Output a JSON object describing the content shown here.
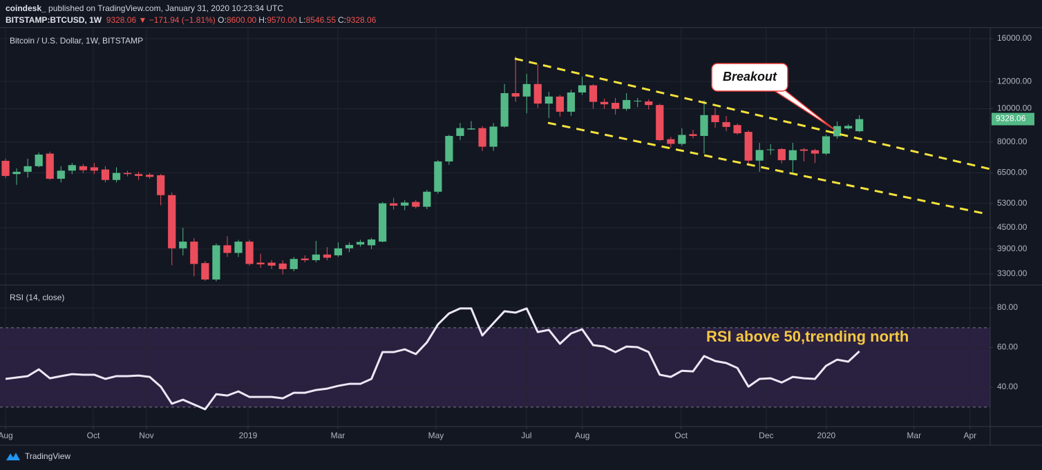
{
  "header": {
    "author": "coindesk_",
    "published": "published on TradingView.com, January 31, 2020 10:23:34 UTC",
    "symbol": "BITSTAMP:BTCUSD, 1W",
    "last": "9328.06",
    "change": "▼ −171.94 (−1.81%)",
    "ohlc": [
      {
        "label": "O:",
        "value": "8600.00"
      },
      {
        "label": "H:",
        "value": "9570.00"
      },
      {
        "label": "L:",
        "value": "8546.55"
      },
      {
        "label": "C:",
        "value": "9328.06"
      }
    ]
  },
  "footer": {
    "brand": "TradingView"
  },
  "chart_data": [
    {
      "type": "candlestick",
      "title": "Bitcoin / U.S. Dollar, 1W, BITSTAMP",
      "annotation": "Breakout",
      "up_color": "#53b987",
      "down_color": "#eb4d5c",
      "grid": true,
      "log": true,
      "xlim": [
        -0.5,
        88.8
      ],
      "ylim": [
        3064,
        17230
      ],
      "yticks": [
        {
          "value": 3300,
          "label": "3300.00"
        },
        {
          "value": 3900,
          "label": "3900.00"
        },
        {
          "value": 4500,
          "label": "4500.00"
        },
        {
          "value": 5300,
          "label": "5300.00"
        },
        {
          "value": 6500,
          "label": "6500.00"
        },
        {
          "value": 8000,
          "label": "8000.00"
        },
        {
          "value": 10000,
          "label": "10000.00"
        },
        {
          "value": 12000,
          "label": "12000.00"
        },
        {
          "value": 16000,
          "label": "16000.00"
        }
      ],
      "open": [
        7050,
        6450,
        6550,
        6800,
        7400,
        6250,
        6600,
        6800,
        6750,
        6650,
        6200,
        6500,
        6450,
        6420,
        6400,
        5600,
        3920,
        4100,
        3550,
        3180,
        4000,
        3800,
        4100,
        3560,
        3560,
        3540,
        3410,
        3660,
        3620,
        3760,
        3740,
        3920,
        4020,
        4000,
        4100,
        5300,
        5220,
        5350,
        5180,
        5730,
        7020,
        8330,
        8700,
        8780,
        7750,
        8870,
        11100,
        10850,
        11800,
        10350,
        10850,
        9800,
        11150,
        11700,
        10470,
        10400,
        9990,
        10500,
        10500,
        10250,
        8150,
        7900,
        8430,
        8330,
        9580,
        9140,
        8960,
        8560,
        7060,
        7580,
        7630,
        7080,
        7610,
        7570,
        7400,
        8310,
        8760,
        8600
      ],
      "high": [
        7150,
        6700,
        7150,
        7450,
        7500,
        6800,
        6950,
        6900,
        6950,
        6800,
        6750,
        6600,
        6550,
        6500,
        6450,
        5700,
        4500,
        4200,
        3600,
        4050,
        4250,
        4150,
        4150,
        3780,
        3620,
        3620,
        3700,
        3740,
        4120,
        3950,
        4080,
        4080,
        4150,
        4200,
        5350,
        5500,
        5420,
        5420,
        5800,
        7090,
        8400,
        9090,
        9200,
        8900,
        9090,
        11800,
        14200,
        12630,
        13500,
        11200,
        10970,
        11350,
        12400,
        11800,
        10700,
        10750,
        11100,
        10750,
        10650,
        10350,
        8280,
        8770,
        8680,
        10580,
        10040,
        9530,
        9050,
        8640,
        7950,
        7890,
        7680,
        7950,
        7680,
        7640,
        8400,
        9180,
        9010,
        9570
      ],
      "low": [
        6280,
        6000,
        6300,
        6750,
        6200,
        6100,
        6450,
        6500,
        6450,
        6100,
        6100,
        6350,
        6200,
        6250,
        5230,
        3500,
        3740,
        3250,
        3150,
        3140,
        3700,
        3700,
        3490,
        3440,
        3410,
        3290,
        3360,
        3570,
        3570,
        3620,
        3700,
        3820,
        3960,
        3900,
        4080,
        5080,
        5060,
        5120,
        5100,
        5650,
        6860,
        8100,
        8680,
        7540,
        7540,
        8820,
        10470,
        9700,
        10050,
        9400,
        9480,
        9530,
        10970,
        9990,
        9990,
        9620,
        9860,
        10100,
        9950,
        8050,
        7700,
        7800,
        8200,
        7400,
        8800,
        8600,
        8400,
        6860,
        6550,
        7340,
        6930,
        6500,
        7020,
        6950,
        7330,
        8170,
        8680,
        8546.55
      ],
      "close": [
        6370,
        6550,
        6800,
        7350,
        6250,
        6600,
        6850,
        6620,
        6600,
        6200,
        6500,
        6450,
        6370,
        6330,
        5600,
        3920,
        4100,
        3530,
        3180,
        4000,
        3800,
        4100,
        3530,
        3520,
        3490,
        3410,
        3650,
        3620,
        3760,
        3680,
        3920,
        4010,
        4090,
        4160,
        5300,
        5220,
        5330,
        5180,
        5730,
        7020,
        8330,
        8780,
        8760,
        7750,
        8870,
        11100,
        10850,
        11800,
        10350,
        10850,
        9800,
        11150,
        11700,
        10470,
        10300,
        9990,
        10600,
        10550,
        10250,
        8100,
        7900,
        8390,
        8330,
        9580,
        9140,
        8850,
        8480,
        7060,
        7580,
        7610,
        7080,
        7570,
        7540,
        7400,
        8310,
        8900,
        8910,
        9328.06
      ]
    },
    {
      "type": "line",
      "title": "RSI (14, close)",
      "annotation": "RSI above 50,trending north",
      "color": "#ece8f5",
      "band": [
        30,
        70
      ],
      "band_color": "#2a2040",
      "grid": true,
      "xlim": [
        -0.5,
        88.8
      ],
      "ylim": [
        20.2,
        91.5
      ],
      "yticks": [
        {
          "value": 40,
          "label": "40.00"
        },
        {
          "value": 60,
          "label": "60.00"
        },
        {
          "value": 80,
          "label": "80.00"
        }
      ],
      "xticks": [
        {
          "value": 0,
          "label": "Aug"
        },
        {
          "value": 7.91,
          "label": "Oct"
        },
        {
          "value": 12.71,
          "label": "Nov"
        },
        {
          "value": 21.87,
          "label": "2019"
        },
        {
          "value": 29.97,
          "label": "Mar"
        },
        {
          "value": 38.82,
          "label": "May"
        },
        {
          "value": 46.98,
          "label": "Jul"
        },
        {
          "value": 52.02,
          "label": "Aug"
        },
        {
          "value": 60.93,
          "label": "Oct"
        },
        {
          "value": 68.6,
          "label": "Dec"
        },
        {
          "value": 74.02,
          "label": "2020"
        },
        {
          "value": 81.93,
          "label": "Mar"
        },
        {
          "value": 86.98,
          "label": "Apr"
        }
      ],
      "values": [
        44.2,
        44.9,
        45.6,
        49.0,
        44.5,
        45.6,
        46.6,
        46.3,
        46.3,
        44.2,
        45.6,
        45.6,
        45.9,
        45.2,
        40.3,
        31.7,
        33.7,
        31.3,
        28.9,
        36.5,
        35.8,
        37.9,
        35.1,
        35.1,
        35.1,
        34.4,
        37.2,
        37.2,
        38.6,
        39.3,
        40.7,
        41.7,
        41.7,
        44.2,
        57.7,
        57.7,
        59.1,
        56.7,
        62.6,
        71.7,
        77.2,
        79.7,
        79.7,
        66.1,
        72.3,
        78.3,
        77.6,
        79.7,
        67.8,
        68.9,
        61.9,
        67.1,
        69.2,
        61.2,
        60.5,
        57.7,
        60.5,
        60.2,
        57.7,
        46.3,
        45.2,
        48.3,
        48.0,
        55.7,
        53.2,
        52.2,
        49.7,
        40.3,
        44.2,
        44.5,
        42.4,
        45.2,
        44.5,
        44.2,
        50.8,
        53.9,
        52.9,
        58.1
      ]
    }
  ]
}
